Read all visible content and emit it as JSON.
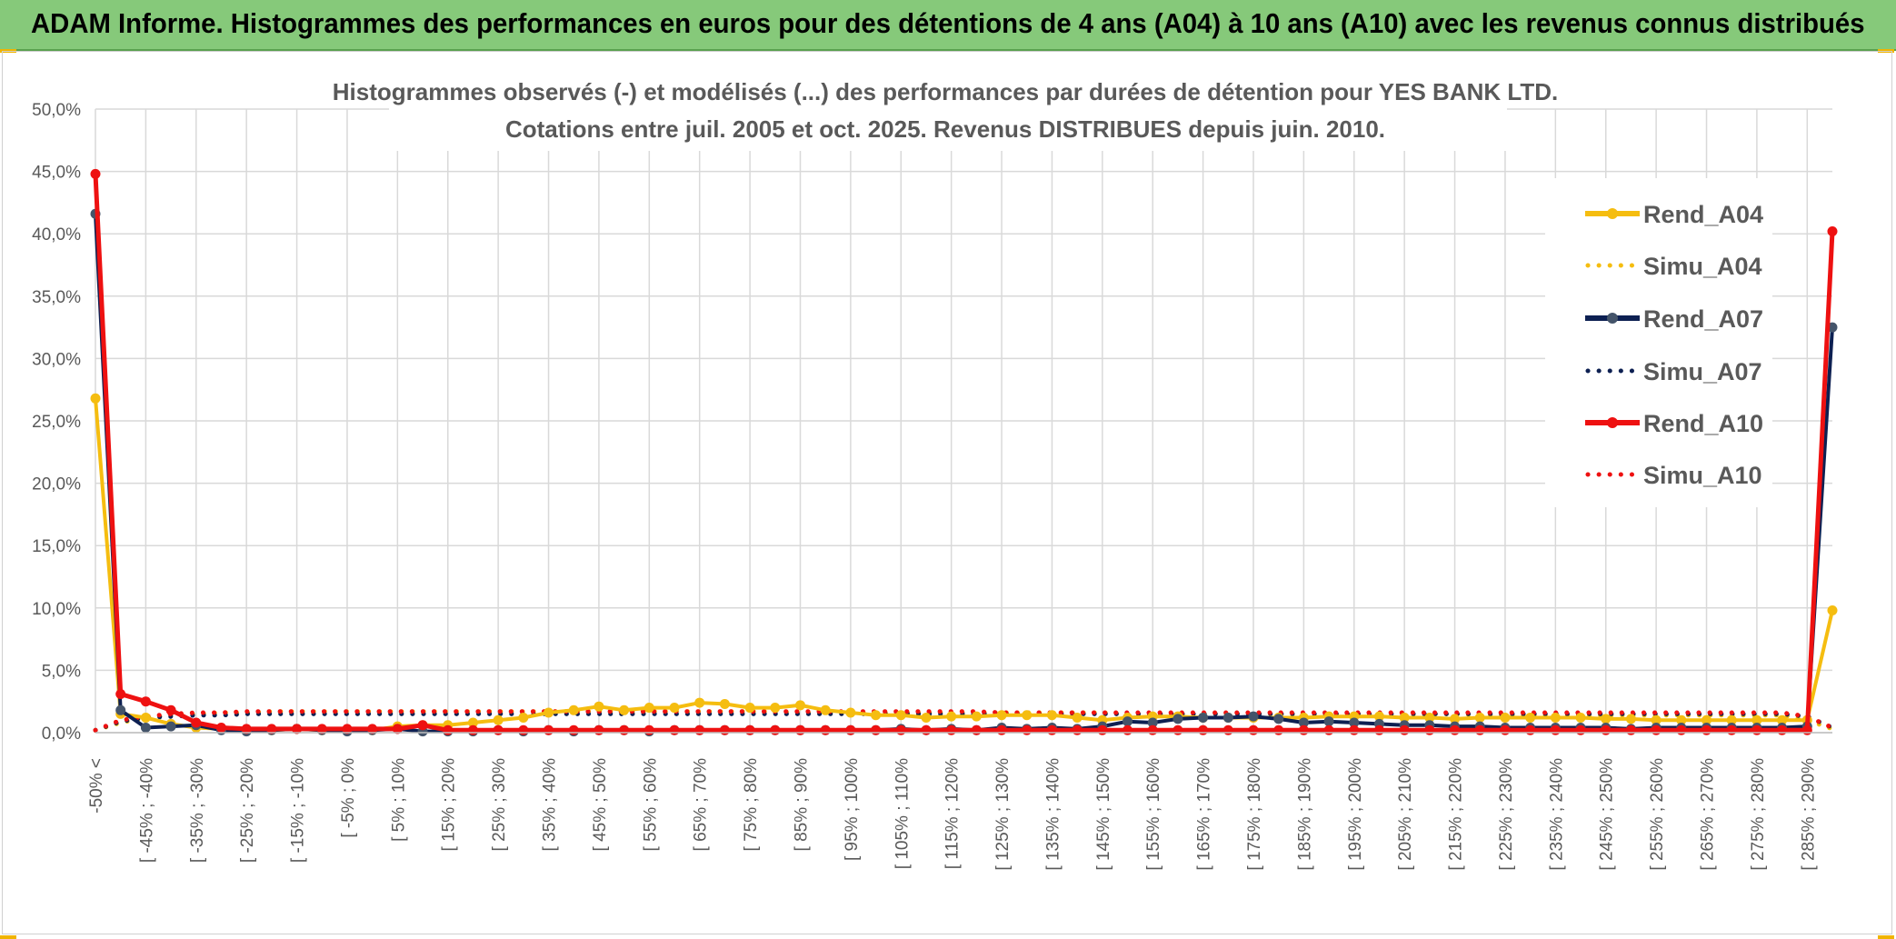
{
  "header": {
    "title": "ADAM Informe. Histogrammes des performances en euros pour des détentions de 4 ans (A04) à 10 ans (A10) avec les revenus connus distribués"
  },
  "chart_data": {
    "type": "line",
    "title_lines": [
      "Histogrammes observés (-) et modélisés (...) des performances par durées de détention pour YES BANK LTD.",
      "Cotations entre juil. 2005 et oct. 2025. Revenus DISTRIBUES depuis juin. 2010."
    ],
    "ylim": [
      0,
      0.5
    ],
    "yticks": [
      0,
      0.05,
      0.1,
      0.15,
      0.2,
      0.25,
      0.3,
      0.35,
      0.4,
      0.45,
      0.5
    ],
    "ytick_labels": [
      "0,0%",
      "5,0%",
      "10,0%",
      "15,0%",
      "20,0%",
      "25,0%",
      "30,0%",
      "35,0%",
      "40,0%",
      "45,0%",
      "50,0%"
    ],
    "category_labels": [
      "-50% <",
      "[ -45% ; -40%",
      "[ -35% ; -30%",
      "[ -25% ; -20%",
      "[ -15% ; -10%",
      "[ -5% ; 0%",
      "[ 5% ; 10%",
      "[ 15% ; 20%",
      "[ 25% ; 30%",
      "[ 35% ; 40%",
      "[ 45% ; 50%",
      "[ 55% ; 60%",
      "[ 65% ; 70%",
      "[ 75% ; 80%",
      "[ 85% ; 90%",
      "[ 95% ; 100%",
      "[ 105% ; 110%",
      "[ 115% ; 120%",
      "[ 125% ; 130%",
      "[ 135% ; 140%",
      "[ 145% ; 150%",
      "[ 155% ; 160%",
      "[ 165% ; 170%",
      "[ 175% ; 180%",
      "[ 185% ; 190%",
      "[ 195% ; 200%",
      "[ 205% ; 210%",
      "[ 215% ; 220%",
      "[ 225% ; 230%",
      "[ 235% ; 240%",
      "[ 245% ; 250%",
      "[ 255% ; 260%",
      "[ 265% ; 270%",
      "[ 275% ; 280%",
      "[ 285% ; 290%"
    ],
    "n_points": 70,
    "grid": true,
    "legend_position": "right",
    "series": [
      {
        "name": "Rend_A04",
        "style": "solid",
        "color": "#f5bd10",
        "values": [
          0.268,
          0.015,
          0.012,
          0.007,
          0.004,
          0.003,
          0.002,
          0.002,
          0.003,
          0.002,
          0.002,
          0.002,
          0.005,
          0.006,
          0.006,
          0.008,
          0.01,
          0.012,
          0.016,
          0.018,
          0.021,
          0.018,
          0.02,
          0.02,
          0.024,
          0.023,
          0.02,
          0.02,
          0.022,
          0.018,
          0.016,
          0.014,
          0.014,
          0.012,
          0.013,
          0.013,
          0.014,
          0.014,
          0.014,
          0.012,
          0.01,
          0.012,
          0.013,
          0.013,
          0.012,
          0.012,
          0.012,
          0.012,
          0.012,
          0.013,
          0.013,
          0.013,
          0.012,
          0.012,
          0.011,
          0.012,
          0.012,
          0.012,
          0.012,
          0.012,
          0.011,
          0.011,
          0.01,
          0.01,
          0.01,
          0.01,
          0.01,
          0.01,
          0.01,
          0.098
        ]
      },
      {
        "name": "Simu_A04",
        "style": "dotted",
        "color": "#f5bd10",
        "values": [
          0.002,
          0.008,
          0.012,
          0.014,
          0.015,
          0.016,
          0.016,
          0.017,
          0.017,
          0.017,
          0.017,
          0.017,
          0.017,
          0.017,
          0.017,
          0.017,
          0.017,
          0.017,
          0.017,
          0.017,
          0.017,
          0.017,
          0.017,
          0.017,
          0.017,
          0.017,
          0.017,
          0.017,
          0.016,
          0.016,
          0.016,
          0.016,
          0.016,
          0.016,
          0.016,
          0.016,
          0.016,
          0.016,
          0.016,
          0.016,
          0.016,
          0.015,
          0.015,
          0.015,
          0.015,
          0.015,
          0.015,
          0.015,
          0.015,
          0.015,
          0.015,
          0.015,
          0.015,
          0.015,
          0.015,
          0.014,
          0.014,
          0.014,
          0.014,
          0.014,
          0.014,
          0.014,
          0.014,
          0.014,
          0.014,
          0.014,
          0.014,
          0.014,
          0.01,
          0.003
        ]
      },
      {
        "name": "Rend_A07",
        "style": "solid",
        "color": "#0d2052",
        "values": [
          0.416,
          0.018,
          0.004,
          0.005,
          0.006,
          0.002,
          0.001,
          0.002,
          0.003,
          0.002,
          0.001,
          0.002,
          0.003,
          0.001,
          0.001,
          0.001,
          0.002,
          0.001,
          0.002,
          0.001,
          0.002,
          0.002,
          0.001,
          0.002,
          0.002,
          0.002,
          0.002,
          0.002,
          0.002,
          0.002,
          0.002,
          0.002,
          0.003,
          0.002,
          0.003,
          0.002,
          0.004,
          0.003,
          0.004,
          0.003,
          0.005,
          0.009,
          0.008,
          0.011,
          0.012,
          0.012,
          0.013,
          0.011,
          0.008,
          0.009,
          0.008,
          0.007,
          0.006,
          0.006,
          0.005,
          0.005,
          0.004,
          0.004,
          0.004,
          0.004,
          0.004,
          0.003,
          0.004,
          0.004,
          0.004,
          0.004,
          0.004,
          0.004,
          0.005,
          0.325
        ]
      },
      {
        "name": "Simu_A07",
        "style": "dotted",
        "color": "#0d2052",
        "values": [
          0.002,
          0.009,
          0.012,
          0.013,
          0.014,
          0.014,
          0.015,
          0.015,
          0.015,
          0.015,
          0.015,
          0.015,
          0.015,
          0.015,
          0.015,
          0.015,
          0.015,
          0.015,
          0.015,
          0.015,
          0.015,
          0.015,
          0.015,
          0.015,
          0.015,
          0.015,
          0.015,
          0.015,
          0.015,
          0.015,
          0.015,
          0.015,
          0.015,
          0.015,
          0.015,
          0.015,
          0.015,
          0.015,
          0.015,
          0.015,
          0.015,
          0.015,
          0.015,
          0.015,
          0.015,
          0.015,
          0.015,
          0.015,
          0.015,
          0.015,
          0.015,
          0.015,
          0.015,
          0.015,
          0.015,
          0.015,
          0.015,
          0.015,
          0.015,
          0.015,
          0.015,
          0.015,
          0.015,
          0.015,
          0.015,
          0.015,
          0.015,
          0.015,
          0.013,
          0.004
        ]
      },
      {
        "name": "Rend_A10",
        "style": "solid",
        "color": "#ee1111",
        "values": [
          0.448,
          0.031,
          0.025,
          0.018,
          0.008,
          0.004,
          0.003,
          0.003,
          0.003,
          0.003,
          0.003,
          0.003,
          0.003,
          0.006,
          0.002,
          0.002,
          0.002,
          0.002,
          0.002,
          0.002,
          0.002,
          0.002,
          0.002,
          0.002,
          0.002,
          0.002,
          0.002,
          0.002,
          0.002,
          0.002,
          0.002,
          0.002,
          0.002,
          0.002,
          0.002,
          0.002,
          0.002,
          0.002,
          0.002,
          0.002,
          0.002,
          0.002,
          0.002,
          0.002,
          0.002,
          0.002,
          0.002,
          0.002,
          0.002,
          0.002,
          0.002,
          0.002,
          0.002,
          0.002,
          0.002,
          0.002,
          0.002,
          0.002,
          0.002,
          0.002,
          0.002,
          0.002,
          0.002,
          0.002,
          0.002,
          0.002,
          0.002,
          0.002,
          0.002,
          0.402
        ]
      },
      {
        "name": "Simu_A10",
        "style": "dotted",
        "color": "#ee1111",
        "values": [
          0.002,
          0.01,
          0.013,
          0.015,
          0.016,
          0.016,
          0.017,
          0.017,
          0.017,
          0.017,
          0.017,
          0.017,
          0.017,
          0.017,
          0.017,
          0.017,
          0.017,
          0.017,
          0.017,
          0.017,
          0.017,
          0.017,
          0.017,
          0.017,
          0.017,
          0.017,
          0.017,
          0.017,
          0.017,
          0.017,
          0.017,
          0.017,
          0.017,
          0.017,
          0.017,
          0.017,
          0.016,
          0.016,
          0.016,
          0.016,
          0.016,
          0.016,
          0.016,
          0.016,
          0.016,
          0.016,
          0.016,
          0.016,
          0.016,
          0.016,
          0.016,
          0.016,
          0.016,
          0.016,
          0.016,
          0.016,
          0.016,
          0.016,
          0.016,
          0.016,
          0.016,
          0.016,
          0.016,
          0.016,
          0.016,
          0.016,
          0.016,
          0.016,
          0.013,
          0.004
        ]
      }
    ]
  }
}
